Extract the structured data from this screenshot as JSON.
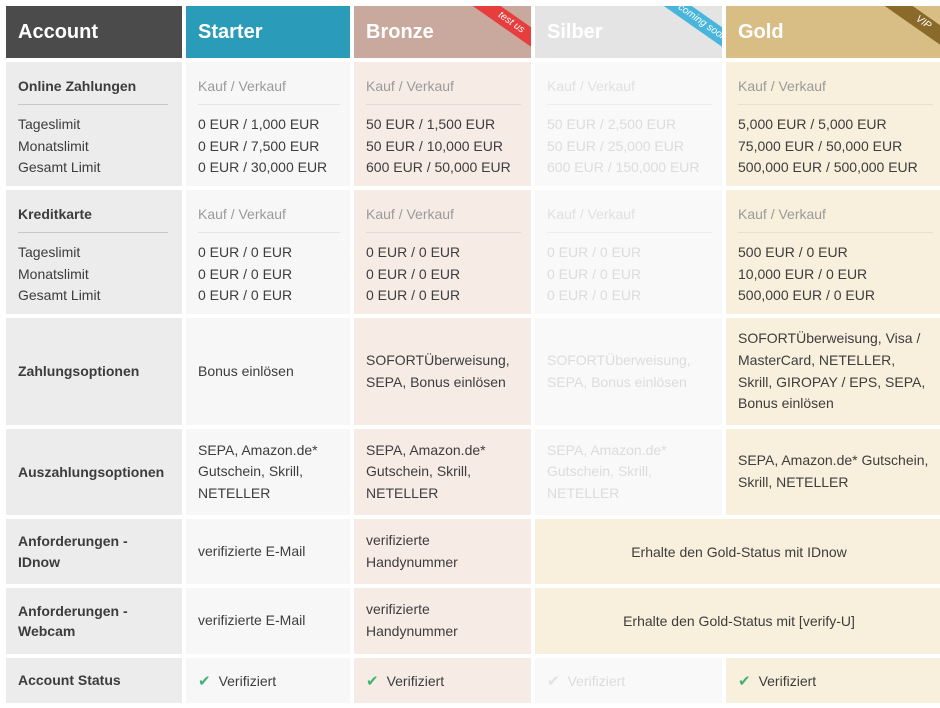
{
  "header": {
    "account": "Account",
    "starter": "Starter",
    "bronze": "Bronze",
    "silber": "Silber",
    "gold": "Gold",
    "ribbons": {
      "bronze": "test us",
      "silber": "coming soon",
      "gold": "VIP"
    }
  },
  "colors": {
    "account": "#4b4b4b",
    "starter": "#2a9bb9",
    "bronze": "#c9a99d",
    "silber": "#e4e4e4",
    "gold": "#d8be84",
    "check": "#3fb46f"
  },
  "online": {
    "label": "Online Zahlungen",
    "sub": [
      "Tageslimit",
      "Monatslimit",
      "Gesamt Limit"
    ],
    "kv": "Kauf / Verkauf",
    "starter": [
      "0 EUR / 1,000 EUR",
      "0 EUR / 7,500 EUR",
      "0 EUR / 30,000 EUR"
    ],
    "bronze": [
      "50 EUR / 1,500 EUR",
      "50 EUR / 10,000 EUR",
      "600 EUR / 50,000 EUR"
    ],
    "silber": [
      "50 EUR / 2,500 EUR",
      "50 EUR / 25,000 EUR",
      "600 EUR / 150,000 EUR"
    ],
    "gold": [
      "5,000 EUR / 5,000 EUR",
      "75,000 EUR / 50,000 EUR",
      "500,000 EUR / 500,000 EUR"
    ]
  },
  "kredit": {
    "label": "Kreditkarte",
    "sub": [
      "Tageslimit",
      "Monatslimit",
      "Gesamt Limit"
    ],
    "kv": "Kauf / Verkauf",
    "starter": [
      "0 EUR / 0 EUR",
      "0 EUR / 0 EUR",
      "0 EUR / 0 EUR"
    ],
    "bronze": [
      "0 EUR / 0 EUR",
      "0 EUR / 0 EUR",
      "0 EUR / 0 EUR"
    ],
    "silber": [
      "0 EUR / 0 EUR",
      "0 EUR / 0 EUR",
      "0 EUR / 0 EUR"
    ],
    "gold": [
      "500 EUR / 0 EUR",
      "10,000 EUR / 0 EUR",
      "500,000 EUR / 0 EUR"
    ]
  },
  "zahlung": {
    "label": "Zahlungsoptionen",
    "starter": "Bonus einlösen",
    "bronze": "SOFORTÜberweisung, SEPA, Bonus einlösen",
    "silber": "SOFORTÜberweisung, SEPA, Bonus einlösen",
    "gold": "SOFORTÜberweisung, Visa / MasterCard, NETELLER, Skrill, GIROPAY / EPS, SEPA, Bonus einlösen"
  },
  "auszahlung": {
    "label": "Auszahlungsoptionen",
    "starter": "SEPA, Amazon.de* Gutschein, Skrill, NETELLER",
    "bronze": "SEPA, Amazon.de* Gutschein, Skrill, NETELLER",
    "silber": "SEPA, Amazon.de* Gutschein, Skrill, NETELLER",
    "gold": "SEPA, Amazon.de* Gutschein, Skrill, NETELLER"
  },
  "idnow": {
    "label": "Anforderungen - IDnow",
    "starter": "verifizierte E-Mail",
    "bronze": "verifizierte Handynummer",
    "merged": "Erhalte den Gold-Status mit IDnow"
  },
  "webcam": {
    "label": "Anforderungen - Webcam",
    "starter": "verifizierte E-Mail",
    "bronze": "verifizierte Handynummer",
    "merged": "Erhalte den Gold-Status mit [verify-U]"
  },
  "status": {
    "label": "Account Status",
    "icon": "check-icon",
    "starter": "Verifiziert",
    "bronze": "Verifiziert",
    "silber": "Verifiziert",
    "gold": "Verifiziert"
  }
}
